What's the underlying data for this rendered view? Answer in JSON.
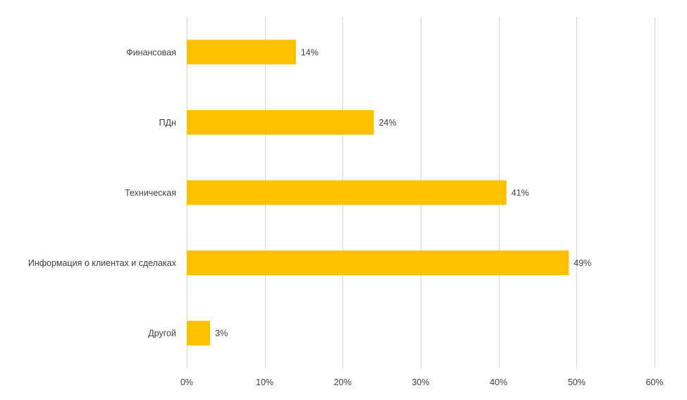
{
  "chart_data": {
    "type": "bar",
    "orientation": "horizontal",
    "categories": [
      "Финансовая",
      "ПДн",
      "Техническая",
      "Информация о клиентах и сделаках",
      "Другой"
    ],
    "values": [
      14,
      24,
      41,
      49,
      3
    ],
    "data_labels": [
      "14%",
      "24%",
      "41%",
      "49%",
      "3%"
    ],
    "x_ticks": [
      "0%",
      "10%",
      "20%",
      "30%",
      "40%",
      "50%",
      "60%"
    ],
    "xlim": [
      0,
      60
    ],
    "grid": true,
    "bar_color": "#ffc000",
    "title": "",
    "xlabel": "",
    "ylabel": ""
  }
}
